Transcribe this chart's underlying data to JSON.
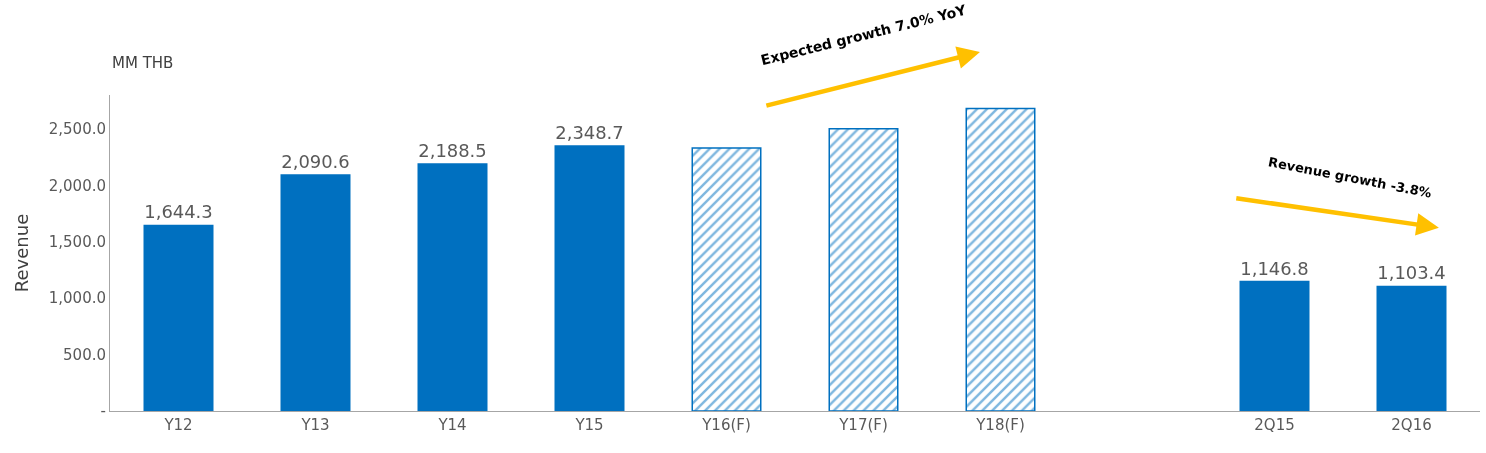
{
  "chart_data": {
    "type": "bar",
    "ylabel": "Revenue",
    "categories": [
      "Y12",
      "Y13",
      "Y14",
      "Y15",
      "Y16(F)",
      "Y17(F)",
      "Y18(F)",
      null,
      "2Q15",
      "2Q16"
    ],
    "series": [
      {
        "color": "#0070c0",
        "values": [
          1644.3,
          2090.6,
          2188.5,
          2348.7,
          null,
          null,
          null,
          null,
          1146.8,
          1103.4
        ],
        "value_labels": [
          "1,644.3",
          "2,090.6",
          "2,188.5",
          "2,348.7",
          null,
          null,
          null,
          null,
          "1,146.8",
          "1,103.4"
        ]
      },
      {
        "color": "#0070c0",
        "values": [
          null,
          null,
          null,
          null,
          2330,
          2500,
          2680,
          null,
          null,
          null
        ]
      }
    ],
    "ylim": [
      0,
      2800
    ],
    "yticks": [
      {
        "value": 0,
        "label": "-"
      },
      {
        "value": 500,
        "label": "500.0"
      },
      {
        "value": 1000,
        "label": "1,000.0"
      },
      {
        "value": 1500,
        "label": "1,500.0"
      },
      {
        "value": 2000,
        "label": "2,000.0"
      },
      {
        "value": 2500,
        "label": "2,500.0"
      }
    ],
    "annotations": [
      "MM THB",
      "Expected growth 7.0% YoY",
      "Revenue growth -3.8%"
    ]
  }
}
